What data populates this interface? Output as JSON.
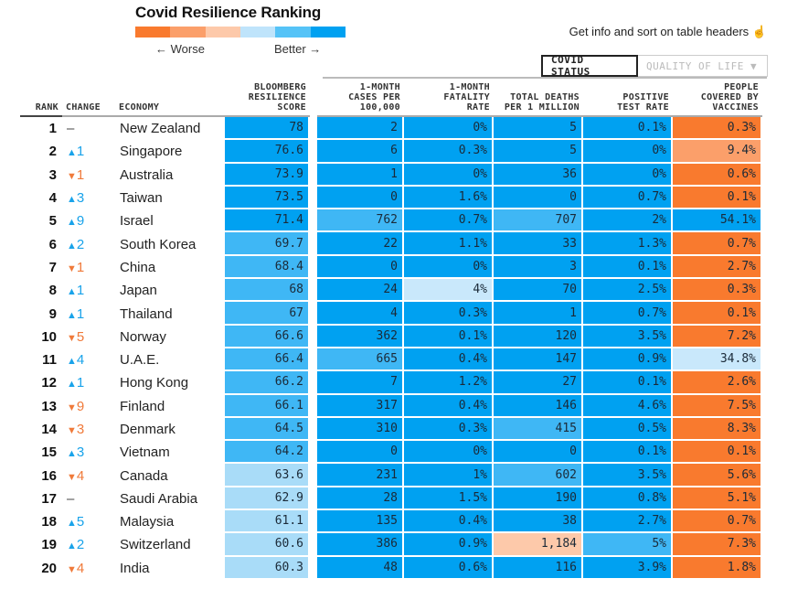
{
  "header": {
    "title": "Covid Resilience Ranking",
    "legend_worse": "← Worse",
    "legend_better": "Better →",
    "legend_colors": [
      "#f97a2e",
      "#fb9f6a",
      "#fdc9aa",
      "#bfe4fb",
      "#55c3f7",
      "#00a1f1"
    ],
    "info_text": "Get info and sort on table headers",
    "info_icon": "pointer-hand-icon"
  },
  "tabs": [
    {
      "label": "COVID STATUS",
      "active": true
    },
    {
      "label": "QUALITY OF LIFE ▼",
      "active": false
    }
  ],
  "columns": {
    "rank": "RANK",
    "change": "CHANGE",
    "economy": "ECONOMY",
    "score": "BLOOMBERG RESILIENCE SCORE",
    "cases": "1-MONTH CASES PER 100,000",
    "fatality": "1-MONTH FATALITY RATE",
    "deaths": "TOTAL DEATHS PER 1 MILLION",
    "positive": "POSITIVE TEST RATE",
    "vaccines": "PEOPLE COVERED BY VACCINES"
  },
  "colors": {
    "b1": "#00a1f1",
    "b2": "#3fb7f5",
    "b3": "#a9dcf8",
    "b4": "#c9e8fb",
    "o1": "#f97a2e",
    "o2": "#fb9f6a",
    "o3": "#fdc9aa"
  },
  "rows": [
    {
      "rank": "1",
      "dir": "same",
      "change": "–",
      "economy": "New Zealand",
      "score": "78",
      "cases": "2",
      "fatality": "0%",
      "deaths": "5",
      "positive": "0.1%",
      "vaccines": "0.3%",
      "c": [
        "b1",
        "b1",
        "b1",
        "b1",
        "b1",
        "o1"
      ]
    },
    {
      "rank": "2",
      "dir": "up",
      "change": "1",
      "economy": "Singapore",
      "score": "76.6",
      "cases": "6",
      "fatality": "0.3%",
      "deaths": "5",
      "positive": "0%",
      "vaccines": "9.4%",
      "c": [
        "b1",
        "b1",
        "b1",
        "b1",
        "b1",
        "o2"
      ]
    },
    {
      "rank": "3",
      "dir": "down",
      "change": "1",
      "economy": "Australia",
      "score": "73.9",
      "cases": "1",
      "fatality": "0%",
      "deaths": "36",
      "positive": "0%",
      "vaccines": "0.6%",
      "c": [
        "b1",
        "b1",
        "b1",
        "b1",
        "b1",
        "o1"
      ]
    },
    {
      "rank": "4",
      "dir": "up",
      "change": "3",
      "economy": "Taiwan",
      "score": "73.5",
      "cases": "0",
      "fatality": "1.6%",
      "deaths": "0",
      "positive": "0.7%",
      "vaccines": "0.1%",
      "c": [
        "b1",
        "b1",
        "b1",
        "b1",
        "b1",
        "o1"
      ]
    },
    {
      "rank": "5",
      "dir": "up",
      "change": "9",
      "economy": "Israel",
      "score": "71.4",
      "cases": "762",
      "fatality": "0.7%",
      "deaths": "707",
      "positive": "2%",
      "vaccines": "54.1%",
      "c": [
        "b1",
        "b2",
        "b1",
        "b2",
        "b1",
        "b1"
      ]
    },
    {
      "rank": "6",
      "dir": "up",
      "change": "2",
      "economy": "South Korea",
      "score": "69.7",
      "cases": "22",
      "fatality": "1.1%",
      "deaths": "33",
      "positive": "1.3%",
      "vaccines": "0.7%",
      "c": [
        "b2",
        "b1",
        "b1",
        "b1",
        "b1",
        "o1"
      ]
    },
    {
      "rank": "7",
      "dir": "down",
      "change": "1",
      "economy": "China",
      "score": "68.4",
      "cases": "0",
      "fatality": "0%",
      "deaths": "3",
      "positive": "0.1%",
      "vaccines": "2.7%",
      "c": [
        "b2",
        "b1",
        "b1",
        "b1",
        "b1",
        "o1"
      ]
    },
    {
      "rank": "8",
      "dir": "up",
      "change": "1",
      "economy": "Japan",
      "score": "68",
      "cases": "24",
      "fatality": "4%",
      "deaths": "70",
      "positive": "2.5%",
      "vaccines": "0.3%",
      "c": [
        "b2",
        "b1",
        "b4",
        "b1",
        "b1",
        "o1"
      ]
    },
    {
      "rank": "9",
      "dir": "up",
      "change": "1",
      "economy": "Thailand",
      "score": "67",
      "cases": "4",
      "fatality": "0.3%",
      "deaths": "1",
      "positive": "0.7%",
      "vaccines": "0.1%",
      "c": [
        "b2",
        "b1",
        "b1",
        "b1",
        "b1",
        "o1"
      ]
    },
    {
      "rank": "10",
      "dir": "down",
      "change": "5",
      "economy": "Norway",
      "score": "66.6",
      "cases": "362",
      "fatality": "0.1%",
      "deaths": "120",
      "positive": "3.5%",
      "vaccines": "7.2%",
      "c": [
        "b2",
        "b1",
        "b1",
        "b1",
        "b1",
        "o1"
      ]
    },
    {
      "rank": "11",
      "dir": "up",
      "change": "4",
      "economy": "U.A.E.",
      "score": "66.4",
      "cases": "665",
      "fatality": "0.4%",
      "deaths": "147",
      "positive": "0.9%",
      "vaccines": "34.8%",
      "c": [
        "b2",
        "b2",
        "b1",
        "b1",
        "b1",
        "b4"
      ]
    },
    {
      "rank": "12",
      "dir": "up",
      "change": "1",
      "economy": "Hong Kong",
      "score": "66.2",
      "cases": "7",
      "fatality": "1.2%",
      "deaths": "27",
      "positive": "0.1%",
      "vaccines": "2.6%",
      "c": [
        "b2",
        "b1",
        "b1",
        "b1",
        "b1",
        "o1"
      ]
    },
    {
      "rank": "13",
      "dir": "down",
      "change": "9",
      "economy": "Finland",
      "score": "66.1",
      "cases": "317",
      "fatality": "0.4%",
      "deaths": "146",
      "positive": "4.6%",
      "vaccines": "7.5%",
      "c": [
        "b2",
        "b1",
        "b1",
        "b1",
        "b1",
        "o1"
      ]
    },
    {
      "rank": "14",
      "dir": "down",
      "change": "3",
      "economy": "Denmark",
      "score": "64.5",
      "cases": "310",
      "fatality": "0.3%",
      "deaths": "415",
      "positive": "0.5%",
      "vaccines": "8.3%",
      "c": [
        "b2",
        "b1",
        "b1",
        "b2",
        "b1",
        "o1"
      ]
    },
    {
      "rank": "15",
      "dir": "up",
      "change": "3",
      "economy": "Vietnam",
      "score": "64.2",
      "cases": "0",
      "fatality": "0%",
      "deaths": "0",
      "positive": "0.1%",
      "vaccines": "0.1%",
      "c": [
        "b2",
        "b1",
        "b1",
        "b1",
        "b1",
        "o1"
      ]
    },
    {
      "rank": "16",
      "dir": "down",
      "change": "4",
      "economy": "Canada",
      "score": "63.6",
      "cases": "231",
      "fatality": "1%",
      "deaths": "602",
      "positive": "3.5%",
      "vaccines": "5.6%",
      "c": [
        "b3",
        "b1",
        "b1",
        "b2",
        "b1",
        "o1"
      ]
    },
    {
      "rank": "17",
      "dir": "same",
      "change": "–",
      "economy": "Saudi Arabia",
      "score": "62.9",
      "cases": "28",
      "fatality": "1.5%",
      "deaths": "190",
      "positive": "0.8%",
      "vaccines": "5.1%",
      "c": [
        "b3",
        "b1",
        "b1",
        "b1",
        "b1",
        "o1"
      ]
    },
    {
      "rank": "18",
      "dir": "up",
      "change": "5",
      "economy": "Malaysia",
      "score": "61.1",
      "cases": "135",
      "fatality": "0.4%",
      "deaths": "38",
      "positive": "2.7%",
      "vaccines": "0.7%",
      "c": [
        "b3",
        "b1",
        "b1",
        "b1",
        "b1",
        "o1"
      ]
    },
    {
      "rank": "19",
      "dir": "up",
      "change": "2",
      "economy": "Switzerland",
      "score": "60.6",
      "cases": "386",
      "fatality": "0.9%",
      "deaths": "1,184",
      "positive": "5%",
      "vaccines": "7.3%",
      "c": [
        "b3",
        "b1",
        "b1",
        "o3",
        "b2",
        "o1"
      ]
    },
    {
      "rank": "20",
      "dir": "down",
      "change": "4",
      "economy": "India",
      "score": "60.3",
      "cases": "48",
      "fatality": "0.6%",
      "deaths": "116",
      "positive": "3.9%",
      "vaccines": "1.8%",
      "c": [
        "b3",
        "b1",
        "b1",
        "b1",
        "b1",
        "o1"
      ]
    }
  ]
}
